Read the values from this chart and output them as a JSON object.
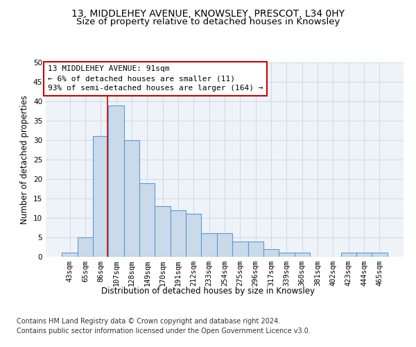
{
  "title_line1": "13, MIDDLEHEY AVENUE, KNOWSLEY, PRESCOT, L34 0HY",
  "title_line2": "Size of property relative to detached houses in Knowsley",
  "xlabel": "Distribution of detached houses by size in Knowsley",
  "ylabel": "Number of detached properties",
  "categories": [
    "43sqm",
    "65sqm",
    "86sqm",
    "107sqm",
    "128sqm",
    "149sqm",
    "170sqm",
    "191sqm",
    "212sqm",
    "233sqm",
    "254sqm",
    "275sqm",
    "296sqm",
    "317sqm",
    "339sqm",
    "360sqm",
    "381sqm",
    "402sqm",
    "423sqm",
    "444sqm",
    "465sqm"
  ],
  "values": [
    1,
    5,
    31,
    39,
    30,
    19,
    13,
    12,
    11,
    6,
    6,
    4,
    4,
    2,
    1,
    1,
    0,
    0,
    1,
    1,
    1
  ],
  "bar_color": "#c9daea",
  "bar_edge_color": "#5b9bd5",
  "grid_color": "#d0d8e4",
  "background_color": "#eef3f8",
  "annotation_box_color": "#ffffff",
  "annotation_border_color": "#cc0000",
  "vline_color": "#cc0000",
  "vline_x_index": 2.45,
  "annotation_text_line1": "13 MIDDLEHEY AVENUE: 91sqm",
  "annotation_text_line2": "← 6% of detached houses are smaller (11)",
  "annotation_text_line3": "93% of semi-detached houses are larger (164) →",
  "footer_line1": "Contains HM Land Registry data © Crown copyright and database right 2024.",
  "footer_line2": "Contains public sector information licensed under the Open Government Licence v3.0.",
  "ylim": [
    0,
    50
  ],
  "yticks": [
    0,
    5,
    10,
    15,
    20,
    25,
    30,
    35,
    40,
    45,
    50
  ],
  "title_fontsize": 10,
  "subtitle_fontsize": 9.5,
  "axis_label_fontsize": 8.5,
  "tick_fontsize": 7.5,
  "annotation_fontsize": 8,
  "footer_fontsize": 7
}
